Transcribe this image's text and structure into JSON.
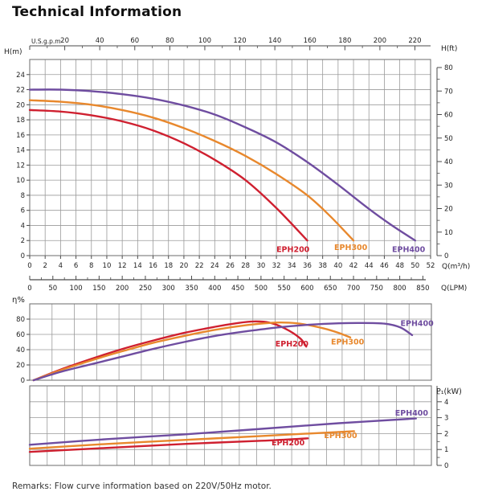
{
  "page": {
    "title": "Technical Information",
    "remarks": "Remarks: Flow curve information based on 220V/50Hz motor."
  },
  "colors": {
    "red": "#cf2030",
    "orange": "#e8882d",
    "purple": "#6f4da0",
    "grid": "#9a9a9a",
    "border": "#787878",
    "axis": "#4a4a4a",
    "text": "#222222"
  },
  "chart_data": [
    {
      "id": "head_vs_flow",
      "type": "line",
      "x_label_top": "U.S.g.p.m",
      "x_label_bottom": "Q(m³/h)",
      "x_label_bottom2": "Q(LPM)",
      "y_label_left": "H(m)",
      "y_label_right": "H(ft)",
      "x_range_m3h": [
        0,
        52
      ],
      "y_range_m": [
        0,
        26
      ],
      "y_range_ft": [
        0,
        80
      ],
      "grid": "2 m3/h by 2 m",
      "x_ticks_m3h": [
        0,
        2,
        4,
        6,
        8,
        10,
        12,
        14,
        16,
        18,
        20,
        22,
        24,
        26,
        28,
        30,
        32,
        34,
        36,
        38,
        40,
        42,
        44,
        46,
        48,
        50,
        52
      ],
      "x_ticks_lpm": [
        0,
        50,
        100,
        150,
        200,
        250,
        300,
        350,
        400,
        450,
        500,
        550,
        600,
        650,
        700,
        750,
        800,
        850
      ],
      "x_ticks_usgpm": [
        20,
        40,
        60,
        80,
        100,
        120,
        140,
        160,
        180,
        200,
        220
      ],
      "y_ticks_m": [
        0,
        2,
        4,
        6,
        8,
        10,
        12,
        14,
        16,
        18,
        20,
        22,
        24
      ],
      "y_ticks_ft": [
        0,
        10,
        20,
        30,
        40,
        50,
        60,
        70,
        80
      ],
      "series": [
        {
          "name": "EPH200",
          "color_key": "red",
          "points": [
            [
              0,
              19.3
            ],
            [
              4,
              19.1
            ],
            [
              8,
              18.6
            ],
            [
              12,
              17.8
            ],
            [
              16,
              16.6
            ],
            [
              20,
              14.9
            ],
            [
              24,
              12.7
            ],
            [
              28,
              10.0
            ],
            [
              32,
              6.3
            ],
            [
              36,
              2.0
            ]
          ]
        },
        {
          "name": "EPH300",
          "color_key": "orange",
          "points": [
            [
              0,
              20.6
            ],
            [
              4,
              20.4
            ],
            [
              8,
              20.0
            ],
            [
              12,
              19.3
            ],
            [
              16,
              18.3
            ],
            [
              20,
              16.9
            ],
            [
              24,
              15.2
            ],
            [
              28,
              13.2
            ],
            [
              32,
              10.8
            ],
            [
              36,
              8.0
            ],
            [
              39,
              5.2
            ],
            [
              42,
              2.0
            ]
          ]
        },
        {
          "name": "EPH400",
          "color_key": "purple",
          "points": [
            [
              0,
              22.0
            ],
            [
              4,
              22.0
            ],
            [
              8,
              21.8
            ],
            [
              12,
              21.4
            ],
            [
              16,
              20.8
            ],
            [
              20,
              19.9
            ],
            [
              24,
              18.7
            ],
            [
              28,
              17.0
            ],
            [
              32,
              15.0
            ],
            [
              36,
              12.4
            ],
            [
              40,
              9.4
            ],
            [
              44,
              6.2
            ],
            [
              47,
              4.0
            ],
            [
              50,
              2.0
            ]
          ]
        }
      ],
      "labels": [
        {
          "text": "EPH200",
          "q": 32.0,
          "v": 0.5,
          "color_key": "red"
        },
        {
          "text": "EPH300",
          "q": 39.5,
          "v": 0.75,
          "color_key": "orange"
        },
        {
          "text": "EPH400",
          "q": 47.0,
          "v": 0.5,
          "color_key": "purple"
        }
      ]
    },
    {
      "id": "efficiency",
      "type": "line",
      "y_label": "η%",
      "x_range_m3h": [
        0,
        52
      ],
      "y_range_pct": [
        0,
        100
      ],
      "y_ticks_pct": [
        0,
        20,
        40,
        60,
        80
      ],
      "series": [
        {
          "name": "EPH200",
          "color_key": "red",
          "points": [
            [
              0.5,
              0
            ],
            [
              4,
              14
            ],
            [
              8,
              28
            ],
            [
              12,
              41
            ],
            [
              16,
              52
            ],
            [
              20,
              62
            ],
            [
              24,
              70
            ],
            [
              27,
              75
            ],
            [
              29,
              77
            ],
            [
              31,
              75.5
            ],
            [
              33,
              68
            ],
            [
              35,
              55
            ],
            [
              35.8,
              44
            ]
          ]
        },
        {
          "name": "EPH300",
          "color_key": "orange",
          "points": [
            [
              0.5,
              0
            ],
            [
              4,
              13
            ],
            [
              8,
              26
            ],
            [
              12,
              38
            ],
            [
              16,
              49
            ],
            [
              20,
              58
            ],
            [
              24,
              66
            ],
            [
              28,
              72
            ],
            [
              31,
              75
            ],
            [
              33,
              75.5
            ],
            [
              35,
              74
            ],
            [
              38,
              68
            ],
            [
              40,
              62
            ],
            [
              41.5,
              56
            ]
          ]
        },
        {
          "name": "EPH400",
          "color_key": "purple",
          "points": [
            [
              0.5,
              0
            ],
            [
              4,
              11
            ],
            [
              8,
              21
            ],
            [
              12,
              31
            ],
            [
              16,
              41
            ],
            [
              20,
              50
            ],
            [
              24,
              58
            ],
            [
              28,
              64
            ],
            [
              32,
              69
            ],
            [
              36,
              72.5
            ],
            [
              40,
              74.5
            ],
            [
              43,
              75
            ],
            [
              46,
              74
            ],
            [
              48,
              69
            ],
            [
              49.5,
              59
            ]
          ]
        }
      ],
      "labels": [
        {
          "text": "EPH200",
          "q": 31.8,
          "v": 44,
          "color_key": "red"
        },
        {
          "text": "EPH300",
          "q": 39.0,
          "v": 47,
          "color_key": "orange"
        },
        {
          "text": "EPH400",
          "q": 48.0,
          "v": 71,
          "color_key": "purple"
        }
      ]
    },
    {
      "id": "power_input",
      "type": "line",
      "y_label": "P₁(kW)",
      "x_range_m3h": [
        0,
        52
      ],
      "y_range_kw": [
        0,
        5
      ],
      "y_ticks_kw": [
        0,
        1,
        2,
        3,
        4
      ],
      "series": [
        {
          "name": "EPH200",
          "color_key": "red",
          "points": [
            [
              0,
              0.85
            ],
            [
              10,
              1.1
            ],
            [
              20,
              1.35
            ],
            [
              30,
              1.55
            ],
            [
              36,
              1.7
            ]
          ]
        },
        {
          "name": "EPH300",
          "color_key": "orange",
          "points": [
            [
              0,
              1.05
            ],
            [
              10,
              1.35
            ],
            [
              20,
              1.6
            ],
            [
              30,
              1.85
            ],
            [
              36,
              2.0
            ],
            [
              42,
              2.15
            ]
          ]
        },
        {
          "name": "EPH400",
          "color_key": "purple",
          "points": [
            [
              0,
              1.3
            ],
            [
              10,
              1.65
            ],
            [
              20,
              1.95
            ],
            [
              30,
              2.3
            ],
            [
              40,
              2.65
            ],
            [
              50,
              2.95
            ]
          ]
        }
      ],
      "labels": [
        {
          "text": "EPH200",
          "q": 31.3,
          "v": 1.26,
          "color_key": "red"
        },
        {
          "text": "EPH300",
          "q": 38.1,
          "v": 1.72,
          "color_key": "orange"
        },
        {
          "text": "EPH400",
          "q": 47.3,
          "v": 3.13,
          "color_key": "purple"
        }
      ]
    }
  ]
}
